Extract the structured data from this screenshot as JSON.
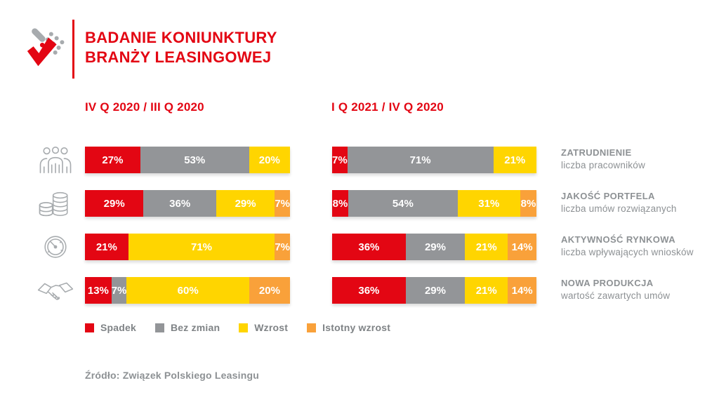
{
  "header": {
    "title_line1": "BADANIE KONIUNKTURY",
    "title_line2": "BRANŻY LEASINGOWEJ"
  },
  "source": "Źródło: Związek Polskiego Leasingu",
  "colors": {
    "accent_red": "#E30613",
    "neutral_gray": "#939598",
    "yellow": "#FFD500",
    "orange": "#F9A13A",
    "label_gray": "#8D9194",
    "icon_gray": "#A7ABAE"
  },
  "chart_data": {
    "type": "bar",
    "variant": "horizontal-stacked",
    "unit": "%",
    "legend_position": "bottom",
    "grid": false,
    "series_legend": [
      {
        "label": "Spadek",
        "color": "#E30613"
      },
      {
        "label": "Bez zmian",
        "color": "#939598"
      },
      {
        "label": "Wzrost",
        "color": "#FFD500"
      },
      {
        "label": "Istotny wzrost",
        "color": "#F9A13A"
      }
    ],
    "categories": [
      {
        "title": "ZATRUDNIENIE",
        "subtitle": "liczba pracowników",
        "icon": "people-icon"
      },
      {
        "title": "JAKOŚĆ PORTFELA",
        "subtitle": "liczba umów rozwiązanych",
        "icon": "coins-icon"
      },
      {
        "title": "AKTYWNOŚĆ RYNKOWA",
        "subtitle": "liczba wpływających wniosków",
        "icon": "gauge-icon"
      },
      {
        "title": "NOWA PRODUKCJA",
        "subtitle": "wartość zawartych umów",
        "icon": "handshake-icon"
      }
    ],
    "panels": [
      {
        "title": "IV Q 2020 / III Q 2020",
        "rows": [
          [
            27,
            53,
            20,
            0
          ],
          [
            29,
            36,
            29,
            7
          ],
          [
            21,
            0,
            71,
            7
          ],
          [
            13,
            7,
            60,
            20
          ]
        ]
      },
      {
        "title": "I Q 2021 / IV Q 2020",
        "rows": [
          [
            7,
            71,
            21,
            0
          ],
          [
            8,
            54,
            31,
            8
          ],
          [
            36,
            29,
            21,
            14
          ],
          [
            36,
            29,
            21,
            14
          ]
        ]
      }
    ]
  }
}
